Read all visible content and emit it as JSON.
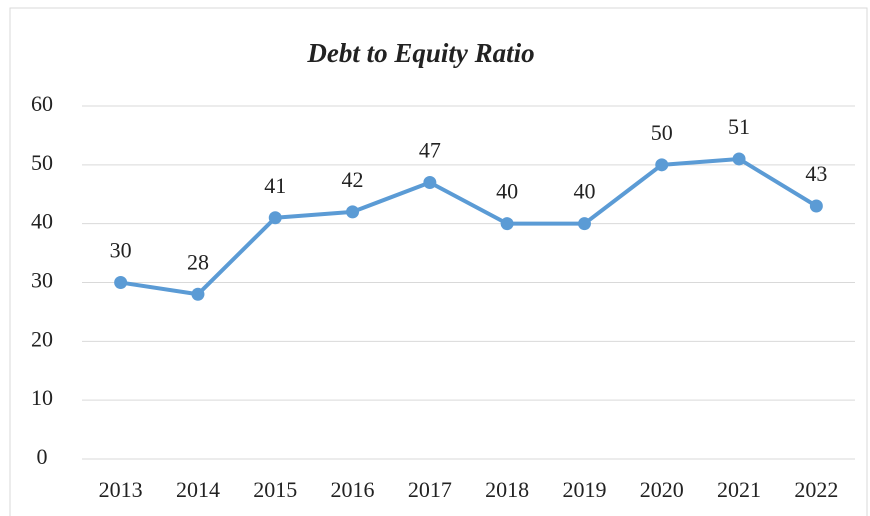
{
  "chart_data": {
    "type": "line",
    "title": "Debt to Equity Ratio",
    "categories": [
      "2013",
      "2014",
      "2015",
      "2016",
      "2017",
      "2018",
      "2019",
      "2020",
      "2021",
      "2022"
    ],
    "values": [
      30,
      28,
      41,
      42,
      47,
      40,
      40,
      50,
      51,
      43
    ],
    "color": "#5b9bd5",
    "ylim": [
      0,
      60
    ],
    "yticks": [
      0,
      10,
      20,
      30,
      40,
      50,
      60
    ],
    "grid": true
  }
}
